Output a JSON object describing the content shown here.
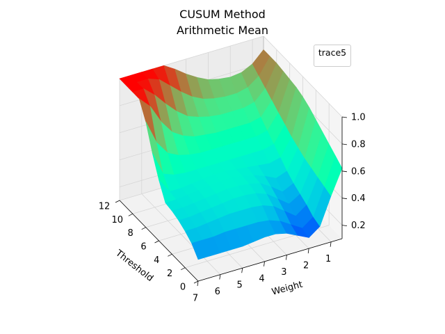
{
  "chart_data": {
    "type": "surface3d",
    "title_line1": "CUSUM Method",
    "title_line2": "Arithmetic Mean",
    "xlabel": "Threshold",
    "ylabel": "Weight",
    "zlabel": "",
    "x_ticks": [
      "0",
      "2",
      "4",
      "6",
      "8",
      "10",
      "12"
    ],
    "y_ticks": [
      "1",
      "2",
      "3",
      "4",
      "5",
      "6",
      "7"
    ],
    "z_ticks": [
      "0.2",
      "0.4",
      "0.6",
      "0.8",
      "1.0"
    ],
    "xlim": [
      0,
      12
    ],
    "ylim": [
      0.5,
      7
    ],
    "zlim": [
      0.1,
      1.0
    ],
    "legend": [
      "trace5"
    ],
    "colormap": "rainbow",
    "threshold": [
      0,
      1,
      2,
      3,
      4,
      5,
      6,
      7,
      8,
      9,
      10,
      11,
      12
    ],
    "weight": [
      0.5,
      1,
      1.5,
      2,
      2.5,
      3,
      3.5,
      4,
      4.5,
      5,
      5.5,
      6,
      6.5,
      7
    ],
    "z": [
      [
        0.62,
        0.44,
        0.24,
        0.18,
        0.22,
        0.26,
        0.28,
        0.28,
        0.27,
        0.26,
        0.26,
        0.26,
        0.26,
        0.26
      ],
      [
        0.66,
        0.46,
        0.26,
        0.2,
        0.25,
        0.3,
        0.33,
        0.34,
        0.34,
        0.34,
        0.34,
        0.33,
        0.33,
        0.33
      ],
      [
        0.7,
        0.48,
        0.3,
        0.24,
        0.3,
        0.36,
        0.39,
        0.4,
        0.4,
        0.4,
        0.39,
        0.38,
        0.37,
        0.37
      ],
      [
        0.74,
        0.5,
        0.33,
        0.28,
        0.34,
        0.4,
        0.43,
        0.44,
        0.44,
        0.43,
        0.42,
        0.41,
        0.4,
        0.4
      ],
      [
        0.78,
        0.52,
        0.36,
        0.32,
        0.38,
        0.43,
        0.45,
        0.46,
        0.46,
        0.45,
        0.44,
        0.43,
        0.42,
        0.42
      ],
      [
        0.82,
        0.55,
        0.4,
        0.37,
        0.41,
        0.44,
        0.46,
        0.47,
        0.47,
        0.46,
        0.45,
        0.44,
        0.43,
        0.43
      ],
      [
        0.85,
        0.58,
        0.45,
        0.43,
        0.44,
        0.45,
        0.46,
        0.47,
        0.47,
        0.46,
        0.45,
        0.44,
        0.44,
        0.55
      ],
      [
        0.87,
        0.62,
        0.5,
        0.48,
        0.48,
        0.48,
        0.48,
        0.48,
        0.48,
        0.48,
        0.48,
        0.49,
        0.52,
        0.7
      ],
      [
        0.88,
        0.66,
        0.55,
        0.53,
        0.53,
        0.53,
        0.53,
        0.53,
        0.53,
        0.54,
        0.56,
        0.6,
        0.7,
        0.88
      ],
      [
        0.89,
        0.7,
        0.6,
        0.58,
        0.58,
        0.58,
        0.58,
        0.59,
        0.6,
        0.63,
        0.68,
        0.78,
        0.92,
        1.0
      ],
      [
        0.9,
        0.74,
        0.66,
        0.64,
        0.64,
        0.64,
        0.65,
        0.67,
        0.7,
        0.76,
        0.84,
        0.93,
        1.0,
        1.0
      ],
      [
        0.9,
        0.78,
        0.72,
        0.7,
        0.7,
        0.71,
        0.73,
        0.77,
        0.83,
        0.9,
        0.97,
        1.0,
        1.0,
        1.0
      ],
      [
        0.9,
        0.82,
        0.78,
        0.77,
        0.78,
        0.8,
        0.84,
        0.89,
        0.95,
        1.0,
        1.0,
        1.0,
        1.0,
        1.0
      ]
    ]
  }
}
